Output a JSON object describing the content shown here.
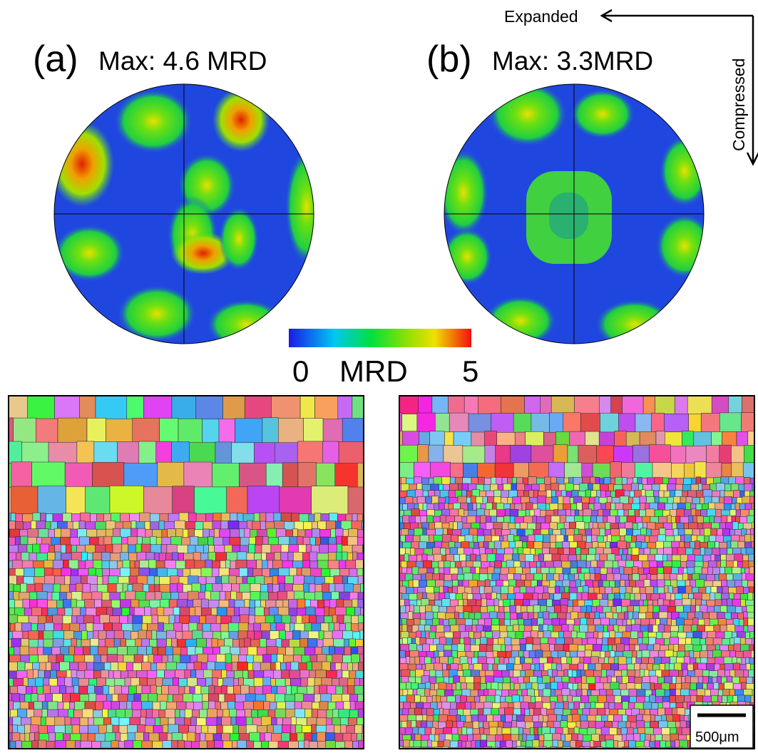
{
  "figure": {
    "orientation": {
      "horizontal": "Expanded",
      "vertical": "Compressed"
    },
    "panels": [
      {
        "label": "(a)",
        "max_text": "Max: 4.6 MRD"
      },
      {
        "label": "(b)",
        "max_text": "Max: 3.3MRD"
      }
    ],
    "colorbar": {
      "min": 0,
      "max": 5,
      "label": "MRD"
    },
    "scale_bar": "500μm"
  }
}
